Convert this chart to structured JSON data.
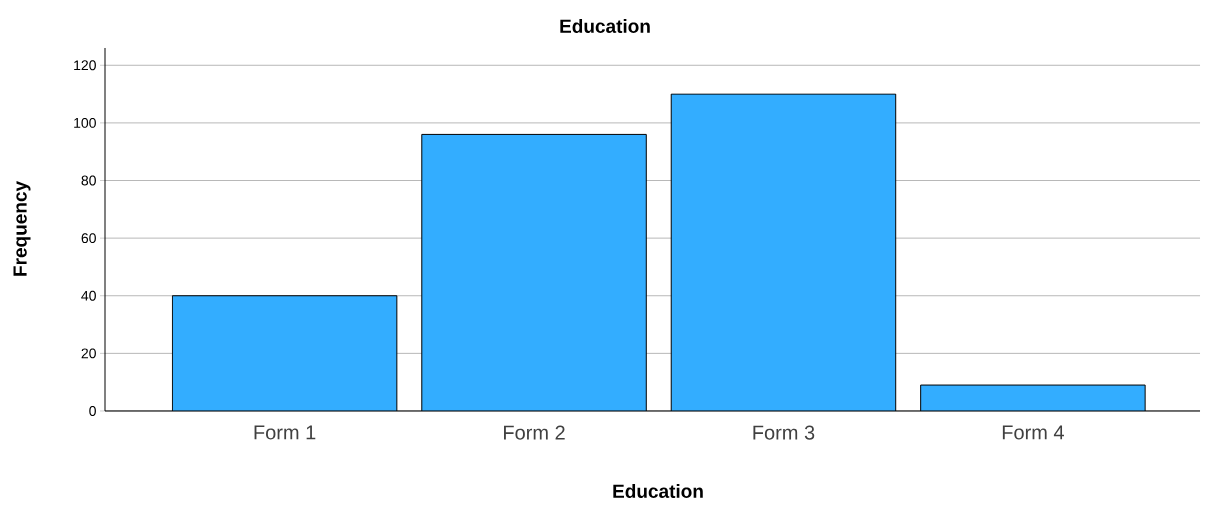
{
  "chart_data": {
    "type": "bar",
    "title": "Education",
    "xlabel": "Education",
    "ylabel": "Frequency",
    "categories": [
      "Form 1",
      "Form 2",
      "Form 3",
      "Form 4"
    ],
    "values": [
      40,
      96,
      110,
      9
    ],
    "color": "#33adff",
    "ylim": [
      0,
      126
    ],
    "yticks": [
      0,
      20,
      40,
      60,
      80,
      100,
      120
    ],
    "grid": "y"
  }
}
